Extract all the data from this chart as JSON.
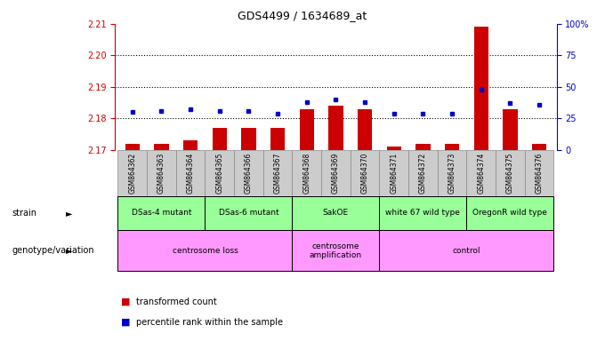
{
  "title": "GDS4499 / 1634689_at",
  "samples": [
    "GSM864362",
    "GSM864363",
    "GSM864364",
    "GSM864365",
    "GSM864366",
    "GSM864367",
    "GSM864368",
    "GSM864369",
    "GSM864370",
    "GSM864371",
    "GSM864372",
    "GSM864373",
    "GSM864374",
    "GSM864375",
    "GSM864376"
  ],
  "bar_values": [
    2.172,
    2.172,
    2.173,
    2.177,
    2.177,
    2.177,
    2.183,
    2.184,
    2.183,
    2.171,
    2.172,
    2.172,
    2.209,
    2.183,
    2.172
  ],
  "dot_values": [
    30,
    31,
    32,
    31,
    31,
    29,
    38,
    40,
    38,
    29,
    29,
    29,
    48,
    37,
    36
  ],
  "ylim_left": [
    2.17,
    2.21
  ],
  "ylim_right": [
    0,
    100
  ],
  "yticks_left": [
    2.17,
    2.18,
    2.19,
    2.2,
    2.21
  ],
  "yticks_right": [
    0,
    25,
    50,
    75,
    100
  ],
  "bar_color": "#cc0000",
  "dot_color": "#0000cc",
  "bar_width": 0.5,
  "strain_color": "#99ff99",
  "geno_color": "#ff99ff",
  "sample_box_color": "#cccccc",
  "strain_groups": [
    {
      "label": "DSas-4 mutant",
      "start": 0,
      "end": 2
    },
    {
      "label": "DSas-6 mutant",
      "start": 3,
      "end": 5
    },
    {
      "label": "SakOE",
      "start": 6,
      "end": 8
    },
    {
      "label": "white 67 wild type",
      "start": 9,
      "end": 11
    },
    {
      "label": "OregonR wild type",
      "start": 12,
      "end": 14
    }
  ],
  "geno_groups": [
    {
      "label": "centrosome loss",
      "start": 0,
      "end": 5
    },
    {
      "label": "centrosome\namplification",
      "start": 6,
      "end": 8
    },
    {
      "label": "control",
      "start": 9,
      "end": 14
    }
  ],
  "legend_bar_label": "transformed count",
  "legend_dot_label": "percentile rank within the sample",
  "left_color": "#cc0000",
  "right_color": "#0000cc"
}
